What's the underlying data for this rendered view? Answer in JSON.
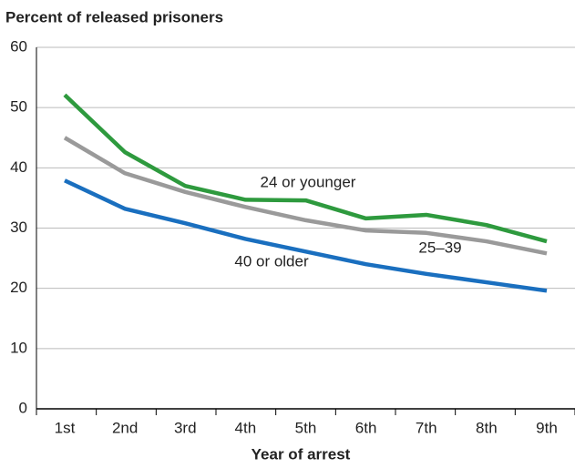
{
  "chart_data": {
    "type": "line",
    "title": "Percent of released prisoners",
    "x_label": "Year of arrest",
    "categories": [
      "1st",
      "2nd",
      "3rd",
      "4th",
      "5th",
      "6th",
      "7th",
      "8th",
      "9th"
    ],
    "series": [
      {
        "name": "24 or younger",
        "color": "#2e9a3e",
        "values": [
          52.1,
          42.6,
          37,
          34.7,
          34.6,
          31.6,
          32.2,
          30.5,
          27.8
        ]
      },
      {
        "name": "25–39",
        "color": "#9a9a9a",
        "values": [
          45,
          39.1,
          36,
          33.5,
          31.3,
          29.6,
          29.2,
          27.8,
          25.8
        ]
      },
      {
        "name": "40 or older",
        "color": "#1a6fbf",
        "values": [
          37.9,
          33.2,
          30.8,
          28.2,
          26.1,
          24,
          22.4,
          21,
          19.6
        ]
      }
    ],
    "ylim": [
      0,
      60
    ],
    "yticks": [
      0,
      10,
      20,
      30,
      40,
      50,
      60
    ],
    "grid": true
  }
}
